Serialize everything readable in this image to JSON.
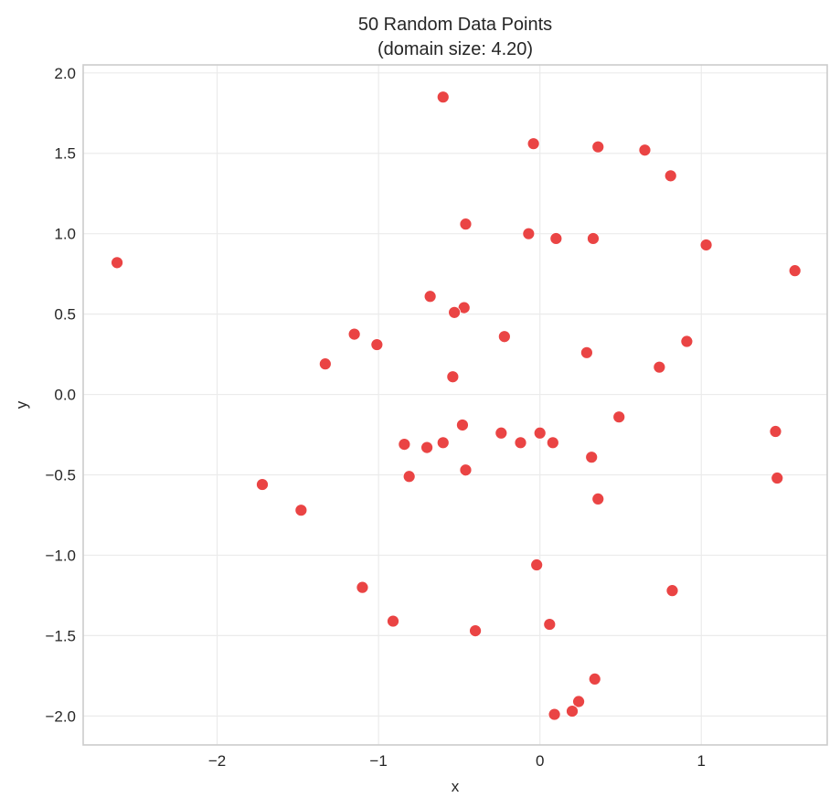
{
  "chart_data": {
    "type": "scatter",
    "title": "50 Random Data Points",
    "subtitle": "(domain size: 4.20)",
    "xlabel": "x",
    "ylabel": "y",
    "xlim": [
      -2.83,
      1.78
    ],
    "ylim": [
      -2.18,
      2.05
    ],
    "xticks": [
      -2,
      -1,
      0,
      1
    ],
    "xtick_labels": [
      "−2",
      "−1",
      "0",
      "1"
    ],
    "yticks": [
      2.0,
      1.5,
      1.0,
      0.5,
      0.0,
      -0.5,
      -1.0,
      -1.5,
      -2.0
    ],
    "ytick_labels": [
      "2.0",
      "1.5",
      "1.0",
      "0.5",
      "0.0",
      "−0.5",
      "−1.0",
      "−1.5",
      "−2.0"
    ],
    "grid": true,
    "legend": null,
    "marker_color": "#ea4444",
    "series": [
      {
        "name": "points",
        "x": [
          -2.62,
          -1.15,
          -1.01,
          -1.33,
          -0.6,
          -0.04,
          0.36,
          -0.46,
          -0.07,
          0.1,
          0.33,
          0.65,
          0.81,
          1.03,
          1.58,
          0.91,
          0.74,
          -0.68,
          -0.47,
          -0.53,
          -0.22,
          0.29,
          -0.54,
          -0.84,
          -0.7,
          -0.6,
          -0.48,
          -0.24,
          -0.12,
          0.0,
          0.08,
          0.49,
          0.32,
          -0.81,
          -0.46,
          0.36,
          -1.72,
          -1.48,
          -1.1,
          -0.02,
          0.82,
          -0.91,
          -0.4,
          0.06,
          0.34,
          0.24,
          0.2,
          0.09,
          1.46,
          1.47
        ],
        "y": [
          0.82,
          0.375,
          0.31,
          0.19,
          1.85,
          1.56,
          1.54,
          1.06,
          1.0,
          0.97,
          0.97,
          1.52,
          1.36,
          0.93,
          0.77,
          0.33,
          0.17,
          0.61,
          0.54,
          0.51,
          0.36,
          0.26,
          0.11,
          -0.31,
          -0.33,
          -0.3,
          -0.19,
          -0.24,
          -0.3,
          -0.24,
          -0.3,
          -0.14,
          -0.39,
          -0.51,
          -0.47,
          -0.65,
          -0.56,
          -0.72,
          -1.2,
          -1.06,
          -1.22,
          -1.41,
          -1.47,
          -1.43,
          -1.77,
          -1.91,
          -1.97,
          -1.99,
          -0.23,
          -0.52
        ]
      }
    ]
  }
}
